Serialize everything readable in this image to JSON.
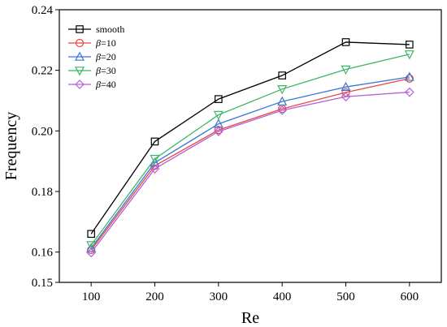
{
  "chart_data": {
    "type": "line",
    "xlabel": "Re",
    "ylabel": "Frequency",
    "xlim": [
      50,
      650
    ],
    "ylim": [
      0.15,
      0.24
    ],
    "xticks": [
      100,
      200,
      300,
      400,
      500,
      600
    ],
    "yticks": [
      0.15,
      0.16,
      0.18,
      0.2,
      0.22,
      0.24
    ],
    "ytick_labels": [
      "0.15",
      "0.16",
      "0.18",
      "0.20",
      "0.22",
      "0.24"
    ],
    "grid": false,
    "legend_position": "top-left",
    "x": [
      100,
      200,
      300,
      400,
      500,
      600
    ],
    "series": [
      {
        "name": "smooth",
        "label_prefix": "",
        "label_suffix": "smooth",
        "marker": "square",
        "color": "#000000",
        "values": [
          0.166,
          0.1965,
          0.2105,
          0.2183,
          0.2293,
          0.2285
        ]
      },
      {
        "name": "β=10",
        "label_prefix": "β",
        "label_suffix": "=10",
        "marker": "circle",
        "color": "#e8473f",
        "values": [
          0.1607,
          0.1885,
          0.2003,
          0.2073,
          0.2127,
          0.2173
        ]
      },
      {
        "name": "β=20",
        "label_prefix": "β",
        "label_suffix": "=20",
        "marker": "triangle-up",
        "color": "#3a78d8",
        "values": [
          0.1613,
          0.1895,
          0.2023,
          0.2097,
          0.2145,
          0.2178
        ]
      },
      {
        "name": "β=30",
        "label_prefix": "β",
        "label_suffix": "=30",
        "marker": "triangle-down",
        "color": "#3cb563",
        "values": [
          0.1623,
          0.1908,
          0.2053,
          0.2138,
          0.2203,
          0.2253
        ]
      },
      {
        "name": "β=40",
        "label_prefix": "β",
        "label_suffix": "=40",
        "marker": "diamond",
        "color": "#b45fd6",
        "values": [
          0.1598,
          0.1875,
          0.1998,
          0.2068,
          0.2113,
          0.2128
        ]
      }
    ]
  }
}
